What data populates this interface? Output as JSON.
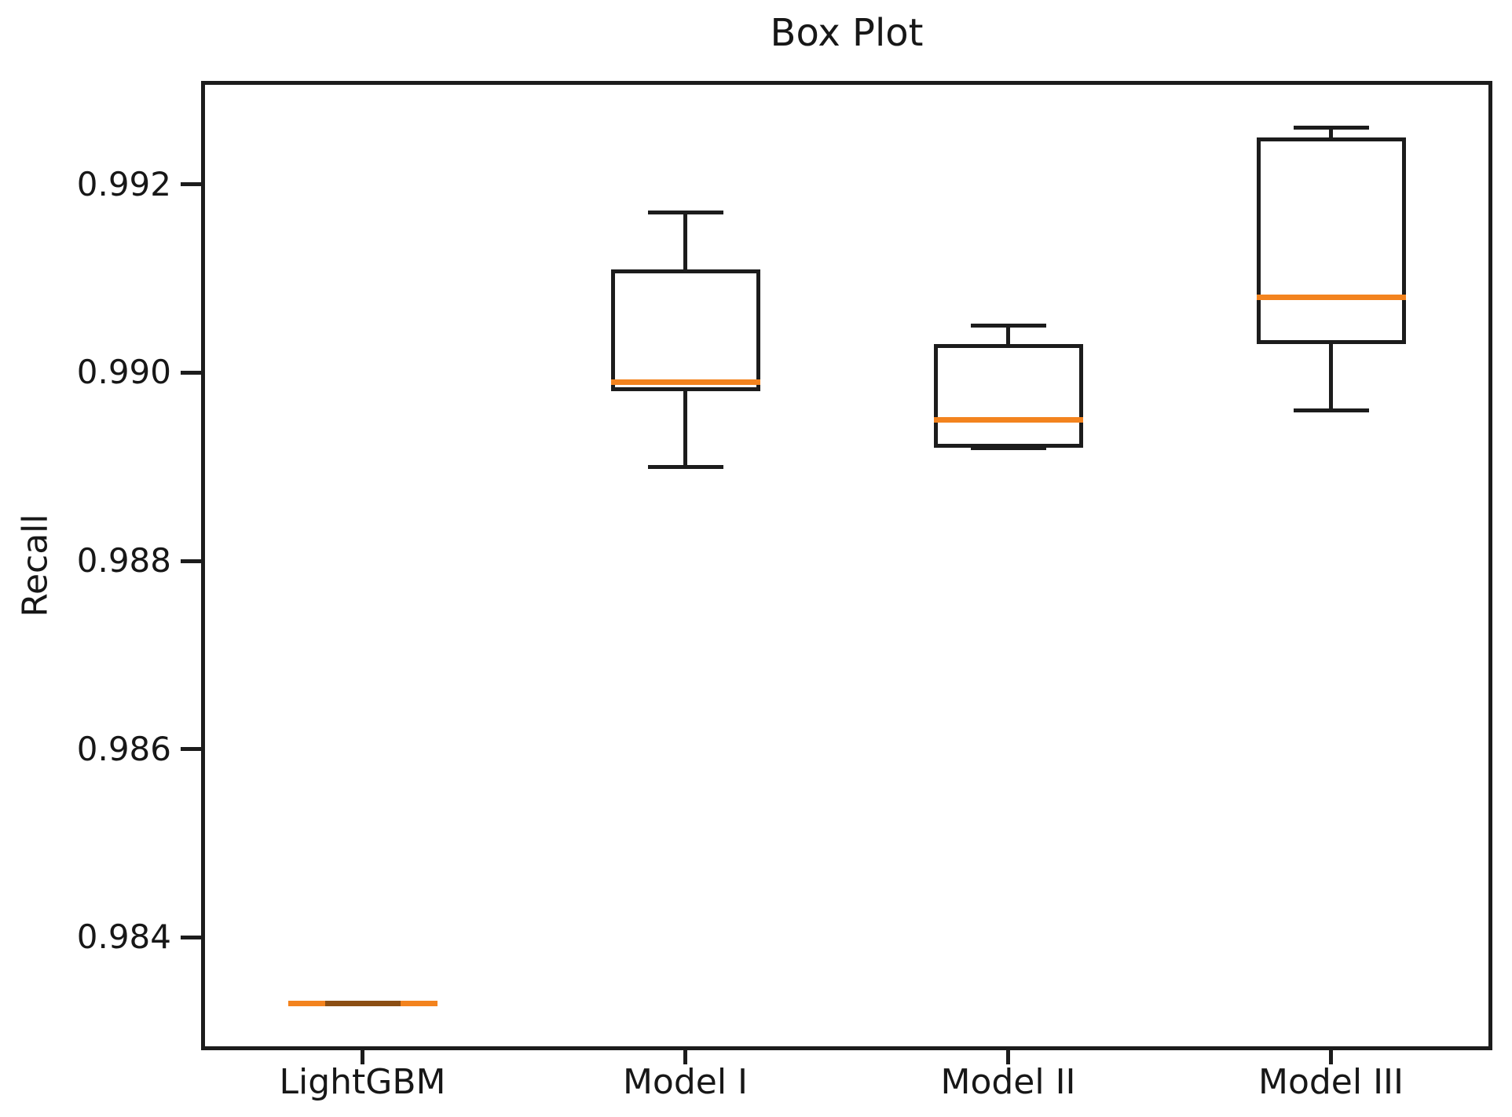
{
  "figure_title": "Box Plot",
  "chart_data": {
    "type": "box",
    "title": "Box Plot",
    "xlabel": "",
    "ylabel": "Recall",
    "categories": [
      "LightGBM",
      "Model I",
      "Model II",
      "Model III"
    ],
    "yticks": [
      0.984,
      0.986,
      0.988,
      0.99,
      0.992
    ],
    "ytick_labels": [
      "0.984",
      "0.986",
      "0.988",
      "0.990",
      "0.992"
    ],
    "ylim": [
      0.9828,
      0.9931
    ],
    "grid": false,
    "legend": null,
    "boxes": [
      {
        "label": "LightGBM",
        "whislo": 0.9833,
        "q1": 0.9833,
        "med": 0.9833,
        "q3": 0.9833,
        "whishi": 0.9833
      },
      {
        "label": "Model I",
        "whislo": 0.989,
        "q1": 0.9898,
        "med": 0.9899,
        "q3": 0.9911,
        "whishi": 0.9917
      },
      {
        "label": "Model II",
        "whislo": 0.9892,
        "q1": 0.9892,
        "med": 0.9895,
        "q3": 0.9903,
        "whishi": 0.9905
      },
      {
        "label": "Model III",
        "whislo": 0.9896,
        "q1": 0.9903,
        "med": 0.9908,
        "q3": 0.9925,
        "whishi": 0.9926
      }
    ],
    "colors": {
      "line": "#1c1c1c",
      "median": "#f3831e",
      "background": "#ffffff",
      "text": "#171717"
    }
  }
}
